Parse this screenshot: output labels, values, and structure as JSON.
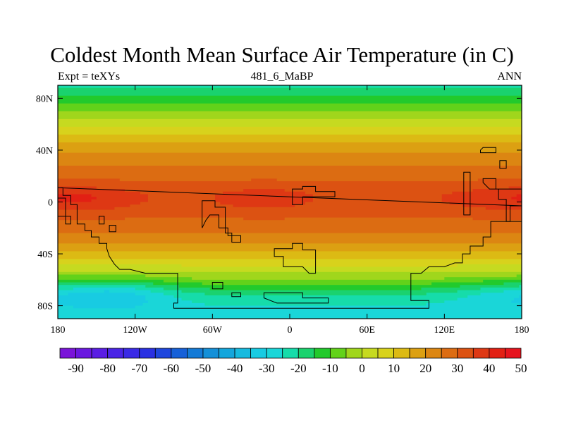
{
  "title": "Coldest Month Mean Surface Air Temperature (in C)",
  "left_string": "Expt = teXYs",
  "center_string": "481_6_MaBP",
  "right_string": "ANN",
  "chart_data": {
    "type": "heatmap",
    "title": "Coldest Month Mean Surface Air Temperature (in C)",
    "units": "C",
    "projection": "cylindrical equidistant",
    "xlim": [
      -180,
      180
    ],
    "ylim": [
      -90,
      90
    ],
    "x_ticks": [
      {
        "value": -180,
        "label": "180"
      },
      {
        "value": -120,
        "label": "120W"
      },
      {
        "value": -60,
        "label": "60W"
      },
      {
        "value": 0,
        "label": "0"
      },
      {
        "value": 60,
        "label": "60E"
      },
      {
        "value": 120,
        "label": "120E"
      },
      {
        "value": 180,
        "label": "180"
      }
    ],
    "y_ticks": [
      {
        "value": 80,
        "label": "80N"
      },
      {
        "value": 40,
        "label": "40N"
      },
      {
        "value": 0,
        "label": "0"
      },
      {
        "value": -40,
        "label": "40S"
      },
      {
        "value": -80,
        "label": "80S"
      }
    ],
    "zonal_profile": [
      {
        "lat": 90,
        "value": -22
      },
      {
        "lat": 84,
        "value": -18
      },
      {
        "lat": 78,
        "value": -12
      },
      {
        "lat": 72,
        "value": -6
      },
      {
        "lat": 66,
        "value": -1
      },
      {
        "lat": 60,
        "value": 4
      },
      {
        "lat": 54,
        "value": 9
      },
      {
        "lat": 48,
        "value": 14
      },
      {
        "lat": 42,
        "value": 18
      },
      {
        "lat": 36,
        "value": 21
      },
      {
        "lat": 30,
        "value": 24
      },
      {
        "lat": 24,
        "value": 27
      },
      {
        "lat": 18,
        "value": 29
      },
      {
        "lat": 12,
        "value": 31
      },
      {
        "lat": 6,
        "value": 33
      },
      {
        "lat": 0,
        "value": 33
      },
      {
        "lat": -6,
        "value": 32
      },
      {
        "lat": -12,
        "value": 30
      },
      {
        "lat": -18,
        "value": 28
      },
      {
        "lat": -24,
        "value": 25
      },
      {
        "lat": -30,
        "value": 21
      },
      {
        "lat": -36,
        "value": 16
      },
      {
        "lat": -42,
        "value": 11
      },
      {
        "lat": -48,
        "value": 6
      },
      {
        "lat": -54,
        "value": 1
      },
      {
        "lat": -60,
        "value": -5
      },
      {
        "lat": -66,
        "value": -13
      },
      {
        "lat": -72,
        "value": -20
      },
      {
        "lat": -78,
        "value": -24
      },
      {
        "lat": -84,
        "value": -26
      },
      {
        "lat": -90,
        "value": -27
      }
    ],
    "warm_regions": [
      {
        "lon": -150,
        "lat": 3,
        "value": 38
      },
      {
        "lon": -20,
        "lat": 3,
        "value": 38
      },
      {
        "lon": 175,
        "lat": 3,
        "value": 37
      },
      {
        "lon": 140,
        "lat": 3,
        "value": 35
      }
    ],
    "cold_regions": [
      {
        "lon": -135,
        "lat": -70,
        "value": -30
      },
      {
        "lon": 165,
        "lat": -70,
        "value": -24
      }
    ],
    "colorbar": {
      "levels": [
        -95,
        -90,
        -85,
        -80,
        -75,
        -70,
        -65,
        -60,
        -55,
        -50,
        -45,
        -40,
        -35,
        -30,
        -25,
        -20,
        -15,
        -10,
        -5,
        0,
        5,
        10,
        15,
        20,
        25,
        30,
        35,
        40,
        45,
        50
      ],
      "labels": [
        "-90",
        "-80",
        "-70",
        "-60",
        "-50",
        "-40",
        "-30",
        "-20",
        "-10",
        "0",
        "10",
        "20",
        "30",
        "40",
        "50"
      ],
      "colors": [
        "#7a14d9",
        "#6a18e0",
        "#5a1ee4",
        "#4a24e6",
        "#3a2ae6",
        "#2a30e2",
        "#1e46dd",
        "#1660d8",
        "#147ad6",
        "#1490d8",
        "#14a6dc",
        "#16badf",
        "#18cbe2",
        "#1ad6d8",
        "#16dcaa",
        "#1ad26e",
        "#22ca2c",
        "#62d21a",
        "#a0d61c",
        "#c6da20",
        "#d8d21c",
        "#dcba14",
        "#dca012",
        "#dc8612",
        "#dc6c12",
        "#dc5212",
        "#de3814",
        "#e22014",
        "#e6141e"
      ]
    },
    "land_outlines": [
      {
        "name": "landmass-1",
        "points": [
          [
            -180,
            11
          ],
          [
            -176,
            11
          ],
          [
            -176,
            5
          ],
          [
            -170,
            5
          ],
          [
            -170,
            -2
          ],
          [
            -165,
            -2
          ],
          [
            -165,
            -17
          ],
          [
            -159,
            -17
          ],
          [
            -159,
            -22
          ],
          [
            -154,
            -22
          ],
          [
            -154,
            -27
          ],
          [
            -148,
            -27
          ],
          [
            -148,
            -32
          ],
          [
            -142,
            -32
          ],
          [
            -142,
            -36
          ],
          [
            -140,
            -42
          ],
          [
            -136,
            -48
          ],
          [
            -132,
            -52
          ],
          [
            -124,
            -52
          ],
          [
            -112,
            -55
          ],
          [
            -100,
            -55
          ],
          [
            -87,
            -55
          ],
          [
            -87,
            -78
          ],
          [
            -90,
            -78
          ],
          [
            -90,
            -82
          ],
          [
            -70,
            -82
          ],
          [
            -20,
            -82
          ],
          [
            30,
            -82
          ],
          [
            60,
            -82
          ],
          [
            108,
            -82
          ],
          [
            108,
            -76
          ],
          [
            94,
            -76
          ],
          [
            94,
            -55
          ],
          [
            102,
            -55
          ],
          [
            108,
            -50
          ],
          [
            120,
            -50
          ],
          [
            128,
            -47
          ],
          [
            134,
            -47
          ],
          [
            134,
            -40
          ],
          [
            140,
            -40
          ],
          [
            140,
            -34
          ],
          [
            150,
            -34
          ],
          [
            150,
            -27
          ],
          [
            156,
            -27
          ],
          [
            156,
            -15
          ],
          [
            171,
            -15
          ],
          [
            171,
            -3
          ],
          [
            180,
            -3
          ]
        ]
      },
      {
        "name": "landmass-2",
        "points": [
          [
            -180,
            3
          ],
          [
            -174,
            3
          ],
          [
            -174,
            -17
          ],
          [
            -170,
            -17
          ],
          [
            -170,
            -11
          ],
          [
            -180,
            -11
          ]
        ]
      },
      {
        "name": "island-1",
        "points": [
          [
            -148,
            -11
          ],
          [
            -144,
            -11
          ],
          [
            -144,
            -17
          ],
          [
            -148,
            -17
          ]
        ]
      },
      {
        "name": "island-2",
        "points": [
          [
            -140,
            -18
          ],
          [
            -135,
            -18
          ],
          [
            -135,
            -23
          ],
          [
            -140,
            -23
          ]
        ]
      },
      {
        "name": "landmass-3",
        "points": [
          [
            -68,
            1
          ],
          [
            -58,
            1
          ],
          [
            -58,
            -4
          ],
          [
            -50,
            -4
          ],
          [
            -50,
            -24
          ],
          [
            -45,
            -24
          ],
          [
            -45,
            -31
          ],
          [
            -38,
            -31
          ],
          [
            -38,
            -26
          ],
          [
            -48,
            -26
          ],
          [
            -48,
            -20
          ],
          [
            -55,
            -20
          ],
          [
            -55,
            -10
          ],
          [
            -62,
            -10
          ],
          [
            -65,
            -14
          ],
          [
            -68,
            -20
          ]
        ]
      },
      {
        "name": "landmass-4",
        "points": [
          [
            2,
            -32
          ],
          [
            10,
            -32
          ],
          [
            10,
            -37
          ],
          [
            20,
            -37
          ],
          [
            20,
            -55
          ],
          [
            15,
            -55
          ],
          [
            10,
            -50
          ],
          [
            -5,
            -50
          ],
          [
            -5,
            -42
          ],
          [
            -12,
            -42
          ],
          [
            -12,
            -36
          ],
          [
            2,
            -36
          ]
        ]
      },
      {
        "name": "landmass-5",
        "points": [
          [
            2,
            10
          ],
          [
            10,
            10
          ],
          [
            10,
            12
          ],
          [
            20,
            12
          ],
          [
            20,
            8
          ],
          [
            35,
            8
          ],
          [
            35,
            4
          ],
          [
            10,
            4
          ],
          [
            10,
            -2
          ],
          [
            2,
            -2
          ]
        ]
      },
      {
        "name": "island-3",
        "points": [
          [
            -60,
            -62
          ],
          [
            -52,
            -62
          ],
          [
            -52,
            -67
          ],
          [
            -60,
            -67
          ]
        ]
      },
      {
        "name": "island-4",
        "points": [
          [
            -45,
            -70
          ],
          [
            -38,
            -70
          ],
          [
            -38,
            -73
          ],
          [
            -45,
            -73
          ]
        ]
      },
      {
        "name": "landmass-6",
        "points": [
          [
            -20,
            -70
          ],
          [
            10,
            -70
          ],
          [
            10,
            -74
          ],
          [
            30,
            -74
          ],
          [
            30,
            -78
          ],
          [
            -10,
            -78
          ],
          [
            -20,
            -74
          ]
        ]
      },
      {
        "name": "landmass-7",
        "points": [
          [
            135,
            23
          ],
          [
            140,
            23
          ],
          [
            140,
            -10
          ],
          [
            135,
            -10
          ]
        ]
      },
      {
        "name": "landmass-8",
        "points": [
          [
            150,
            18
          ],
          [
            160,
            18
          ],
          [
            160,
            10
          ],
          [
            180,
            10
          ],
          [
            180,
            -15
          ],
          [
            168,
            -15
          ],
          [
            168,
            2
          ],
          [
            162,
            2
          ],
          [
            162,
            10
          ],
          [
            155,
            10
          ],
          [
            150,
            15
          ]
        ]
      },
      {
        "name": "island-5",
        "points": [
          [
            150,
            42
          ],
          [
            160,
            42
          ],
          [
            160,
            38
          ],
          [
            148,
            38
          ],
          [
            148,
            40
          ]
        ]
      },
      {
        "name": "island-6",
        "points": [
          [
            163,
            26
          ],
          [
            168,
            26
          ],
          [
            168,
            32
          ],
          [
            163,
            32
          ]
        ]
      }
    ]
  }
}
